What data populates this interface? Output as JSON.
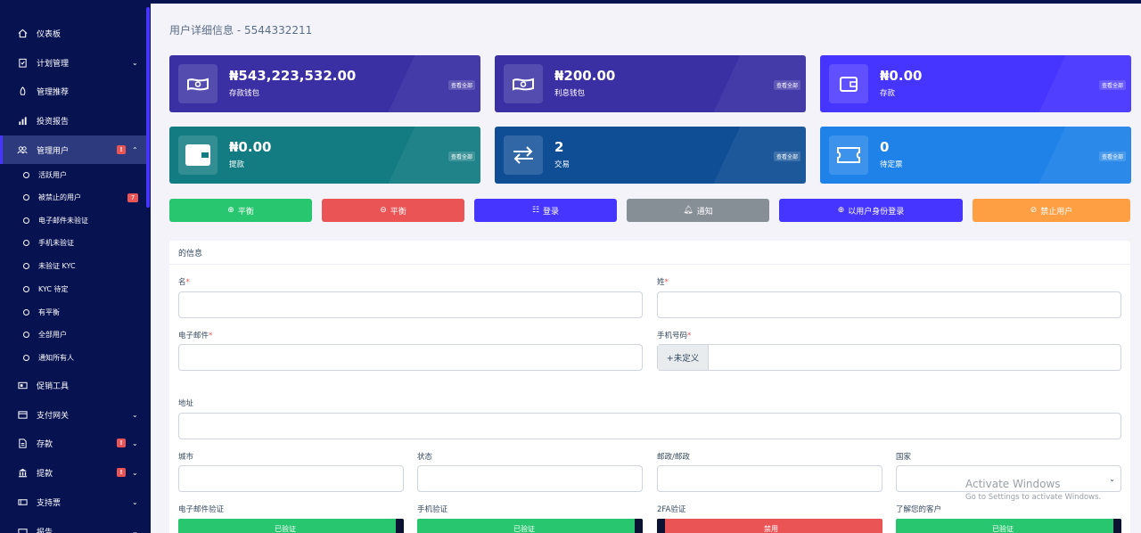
{
  "page_title": "用户详细信息 - 5544332211",
  "sidebar": {
    "items": [
      {
        "label": "仪表板",
        "icon": "home-icon"
      },
      {
        "label": "计划管理",
        "icon": "clipboard-icon"
      },
      {
        "label": "管理推荐",
        "icon": "referral-icon"
      },
      {
        "label": "投资报告",
        "icon": "bar-chart-icon"
      },
      {
        "label": "管理用户",
        "icon": "users-icon",
        "badge": "!"
      },
      {
        "label": "促销工具",
        "icon": "promo-icon"
      },
      {
        "label": "支付网关",
        "icon": "card-icon"
      },
      {
        "label": "存款",
        "icon": "deposit-icon",
        "badge": "!"
      },
      {
        "label": "提款",
        "icon": "bank-icon",
        "badge": "!"
      },
      {
        "label": "支持票",
        "icon": "ticket-icon"
      },
      {
        "label": "报告",
        "icon": "report-icon"
      }
    ],
    "subitems": [
      {
        "label": "活跃用户"
      },
      {
        "label": "被禁止的用户",
        "badge": "7"
      },
      {
        "label": "电子邮件未验证"
      },
      {
        "label": "手机未验证"
      },
      {
        "label": "未验证 KYC"
      },
      {
        "label": "KYC 待定"
      },
      {
        "label": "有平衡"
      },
      {
        "label": "全部用户"
      },
      {
        "label": "通知所有人"
      }
    ]
  },
  "cards": [
    {
      "amount": "₦543,223,532.00",
      "label": "存款钱包",
      "view": "查看全部",
      "color": "#3a2fa3"
    },
    {
      "amount": "₦200.00",
      "label": "利息钱包",
      "view": "查看全部",
      "color": "#3a2fa3"
    },
    {
      "amount": "₦0.00",
      "label": "存款",
      "view": "查看全部",
      "color": "#4634ff"
    },
    {
      "amount": "₦0.00",
      "label": "提款",
      "view": "查看全部",
      "color": "#127c82"
    },
    {
      "amount": "2",
      "label": "交易",
      "view": "查看全部",
      "color": "#0f4e95"
    },
    {
      "amount": "0",
      "label": "待定票",
      "view": "查看全部",
      "color": "#1e82e8"
    }
  ],
  "actions": [
    {
      "label": "平衡",
      "icon": "plus-circle-icon",
      "color": "#28c76f"
    },
    {
      "label": "平衡",
      "icon": "minus-circle-icon",
      "color": "#ea5455"
    },
    {
      "label": "登录",
      "icon": "list-icon",
      "color": "#4634ff"
    },
    {
      "label": "通知",
      "icon": "bell-icon",
      "color": "#868e96"
    },
    {
      "label": "以用户身份登录",
      "icon": "login-icon",
      "color": "#4634ff"
    },
    {
      "label": "禁止用户",
      "icon": "ban-icon",
      "color": "#ff9f43"
    }
  ],
  "form": {
    "title": "的信息",
    "first_name_label": "名",
    "last_name_label": "姓",
    "email_label": "电子邮件",
    "mobile_label": "手机号码",
    "mobile_prefix": "+未定义",
    "address_label": "地址",
    "city_label": "城市",
    "state_label": "状态",
    "zip_label": "邮政/邮政",
    "country_label": "国家",
    "required_mark": "*",
    "toggles": [
      {
        "label": "电子邮件验证",
        "state": "已验证",
        "color": "#28c76f"
      },
      {
        "label": "手机验证",
        "state": "已验证",
        "color": "#28c76f"
      },
      {
        "label": "2FA验证",
        "state": "禁用",
        "color": "#ea5455"
      },
      {
        "label": "了解您的客户",
        "state": "已验证",
        "color": "#28c76f"
      }
    ]
  },
  "watermark": {
    "line1": "Activate Windows",
    "line2": "Go to Settings to activate Windows."
  }
}
